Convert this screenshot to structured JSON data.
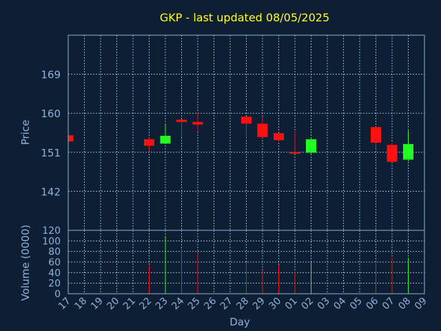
{
  "chart_data": {
    "type": "candlestick",
    "title": "GKP - last updated 08/05/2025",
    "xlabel": "Day",
    "ylabel": "Price",
    "volume_label": "Volume (0000)",
    "price_ticks": [
      142,
      151,
      160,
      169
    ],
    "price_range": [
      133,
      178
    ],
    "volume_ticks": [
      0,
      20,
      40,
      60,
      80,
      100,
      120
    ],
    "volume_range": [
      0,
      120
    ],
    "grid": true,
    "x_labels": [
      "17",
      "18",
      "19",
      "20",
      "21",
      "22",
      "23",
      "24",
      "25",
      "26",
      "27",
      "28",
      "29",
      "30",
      "01",
      "02",
      "03",
      "04",
      "05",
      "06",
      "07",
      "08",
      "09"
    ],
    "candles": [
      {
        "day": "17",
        "open": 154.9,
        "high": 154.9,
        "low": 153.5,
        "close": 153.5,
        "volume": null
      },
      {
        "day": "22",
        "open": 154.0,
        "high": 154.3,
        "low": 151.2,
        "close": 152.5,
        "volume": 53
      },
      {
        "day": "23",
        "open": 153.0,
        "high": 157.5,
        "low": 152.9,
        "close": 154.8,
        "volume": 110
      },
      {
        "day": "24",
        "open": 158.5,
        "high": 158.6,
        "low": 154.5,
        "close": 158.0,
        "volume": 85
      },
      {
        "day": "25",
        "open": 158.0,
        "high": 160.3,
        "low": 155.8,
        "close": 157.4,
        "volume": 77
      },
      {
        "day": "28",
        "open": 159.2,
        "high": 159.2,
        "low": 154.2,
        "close": 157.6,
        "volume": 60
      },
      {
        "day": "29",
        "open": 157.6,
        "high": 159.2,
        "low": 154.3,
        "close": 154.5,
        "volume": 45
      },
      {
        "day": "30",
        "open": 155.4,
        "high": 155.4,
        "low": 153.6,
        "close": 153.8,
        "volume": 55
      },
      {
        "day": "01",
        "open": 151.0,
        "high": 155.9,
        "low": 150.8,
        "close": 150.8,
        "volume": 42
      },
      {
        "day": "02",
        "open": 150.9,
        "high": 154.2,
        "low": 150.4,
        "close": 154.0,
        "volume": 62
      },
      {
        "day": "06",
        "open": 156.8,
        "high": 156.8,
        "low": 151.8,
        "close": 153.2,
        "volume": 57
      },
      {
        "day": "07",
        "open": 152.7,
        "high": 153.2,
        "low": 148.8,
        "close": 148.8,
        "volume": 68
      },
      {
        "day": "08",
        "open": 149.3,
        "high": 156.0,
        "low": 148.9,
        "close": 152.9,
        "volume": 68
      }
    ]
  },
  "colors": {
    "background": "#0f1f33",
    "up": "#22ff22",
    "down": "#ff1111",
    "title": "#ffff22",
    "axis_text": "#8db2dd",
    "frame": "#8db2dd",
    "grid": "#8db2dd"
  }
}
